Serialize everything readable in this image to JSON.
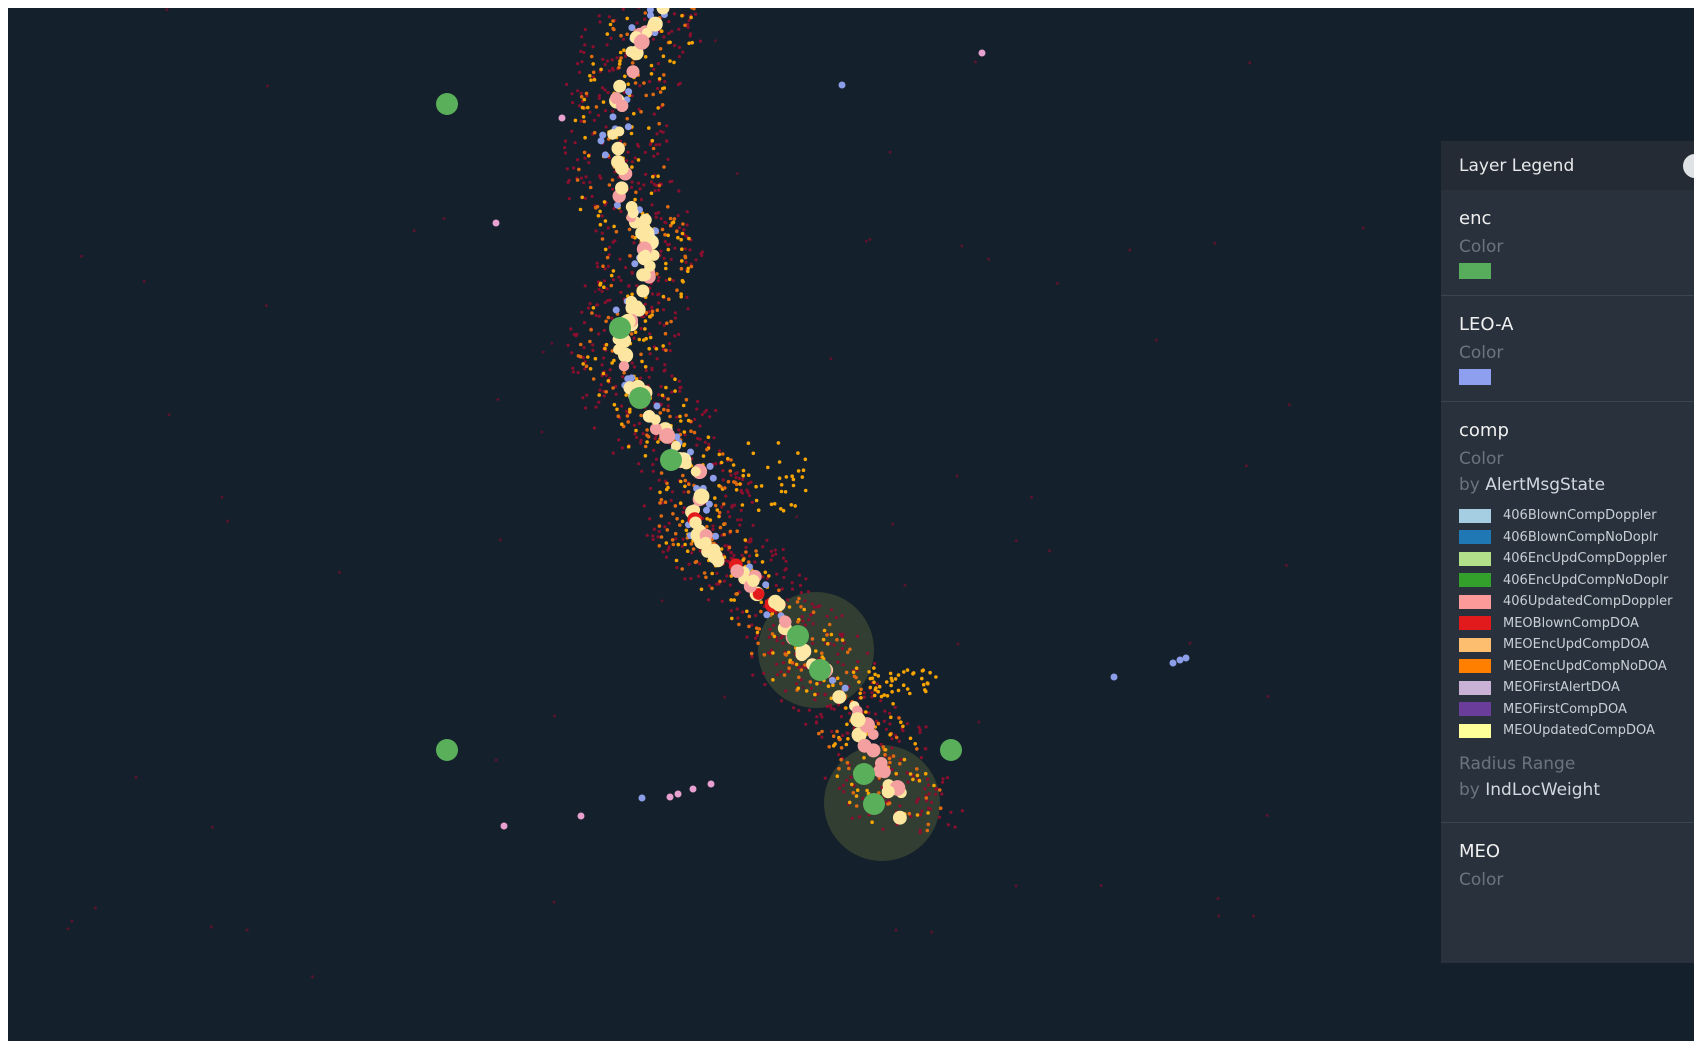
{
  "colors": {
    "background": "#14202b",
    "enc": "#5aaf5a",
    "leo_a": "#8c9ee8",
    "track_dark": "#8a0f2e",
    "track_orange": "#f7a400",
    "track_light": "#fde6a0",
    "track_pink": "#f4a0a0",
    "halo": "#5a6a3a"
  },
  "legend": {
    "title": "Layer Legend",
    "toggle_icon": "collapse-toggle-icon",
    "layers": [
      {
        "name": "enc",
        "color_label": "Color",
        "color": "#58ad5c"
      },
      {
        "name": "LEO-A",
        "color_label": "Color",
        "color": "#8e9ff0"
      },
      {
        "name": "comp",
        "color_label": "Color",
        "by_label": "by",
        "by_field": "AlertMsgState",
        "categories": [
          {
            "label": "406BlownCompDoppler",
            "color": "#a6cee3"
          },
          {
            "label": "406BlownCompNoDoplr",
            "color": "#1f78b4"
          },
          {
            "label": "406EncUpdCompDoppler",
            "color": "#b2df8a"
          },
          {
            "label": "406EncUpdCompNoDoplr",
            "color": "#33a02c"
          },
          {
            "label": "406UpdatedCompDoppler",
            "color": "#fb9a99"
          },
          {
            "label": "MEOBlownCompDOA",
            "color": "#e31a1c"
          },
          {
            "label": "MEOEncUpdCompDOA",
            "color": "#fdbf6f"
          },
          {
            "label": "MEOEncUpdCompNoDOA",
            "color": "#ff7f00"
          },
          {
            "label": "MEOFirstAlertDOA",
            "color": "#cab2d6"
          },
          {
            "label": "MEOFirstCompDOA",
            "color": "#6a3d9a"
          },
          {
            "label": "MEOUpdatedCompDOA",
            "color": "#ffff99"
          }
        ],
        "radius_label": "Radius Range",
        "radius_by_label": "by",
        "radius_by_field": "IndLocWeight"
      },
      {
        "name": "MEO",
        "color_label": "Color"
      }
    ]
  }
}
